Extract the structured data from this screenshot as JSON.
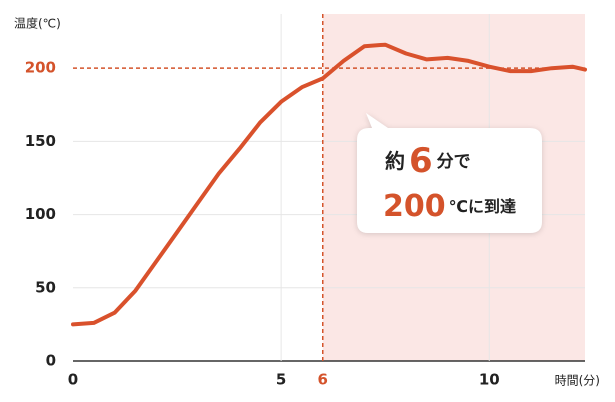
{
  "chart_data": {
    "type": "line",
    "y_label": "温度(℃)",
    "x_label": "時間(分)",
    "x": [
      0,
      0.5,
      1,
      1.5,
      2,
      2.5,
      3,
      3.5,
      4,
      4.5,
      5,
      5.5,
      6,
      6.5,
      7,
      7.5,
      8,
      8.5,
      9,
      9.5,
      10,
      10.5,
      11,
      11.5,
      12,
      12.3
    ],
    "series": [
      {
        "color": "#d9512c",
        "values": [
          25,
          26,
          33,
          48,
          68,
          88,
          108,
          128,
          145,
          163,
          177,
          187,
          193,
          205,
          215,
          216,
          210,
          206,
          207,
          205,
          201,
          198,
          198,
          200,
          201,
          199
        ]
      }
    ],
    "xlim": [
      0,
      12.3
    ],
    "ylim": [
      0,
      237
    ],
    "xticks": [
      0,
      5,
      6,
      10
    ],
    "yticks": [
      0,
      50,
      100,
      150,
      200
    ],
    "highlight_ticks": {
      "x": 6,
      "y": 200
    },
    "highlight_color": "#d4532b",
    "shade_color": "#fbe7e5",
    "grid": true,
    "callout": {
      "line1": [
        "約",
        "6",
        "分で"
      ],
      "line2": [
        "200",
        "℃に到達"
      ]
    }
  }
}
